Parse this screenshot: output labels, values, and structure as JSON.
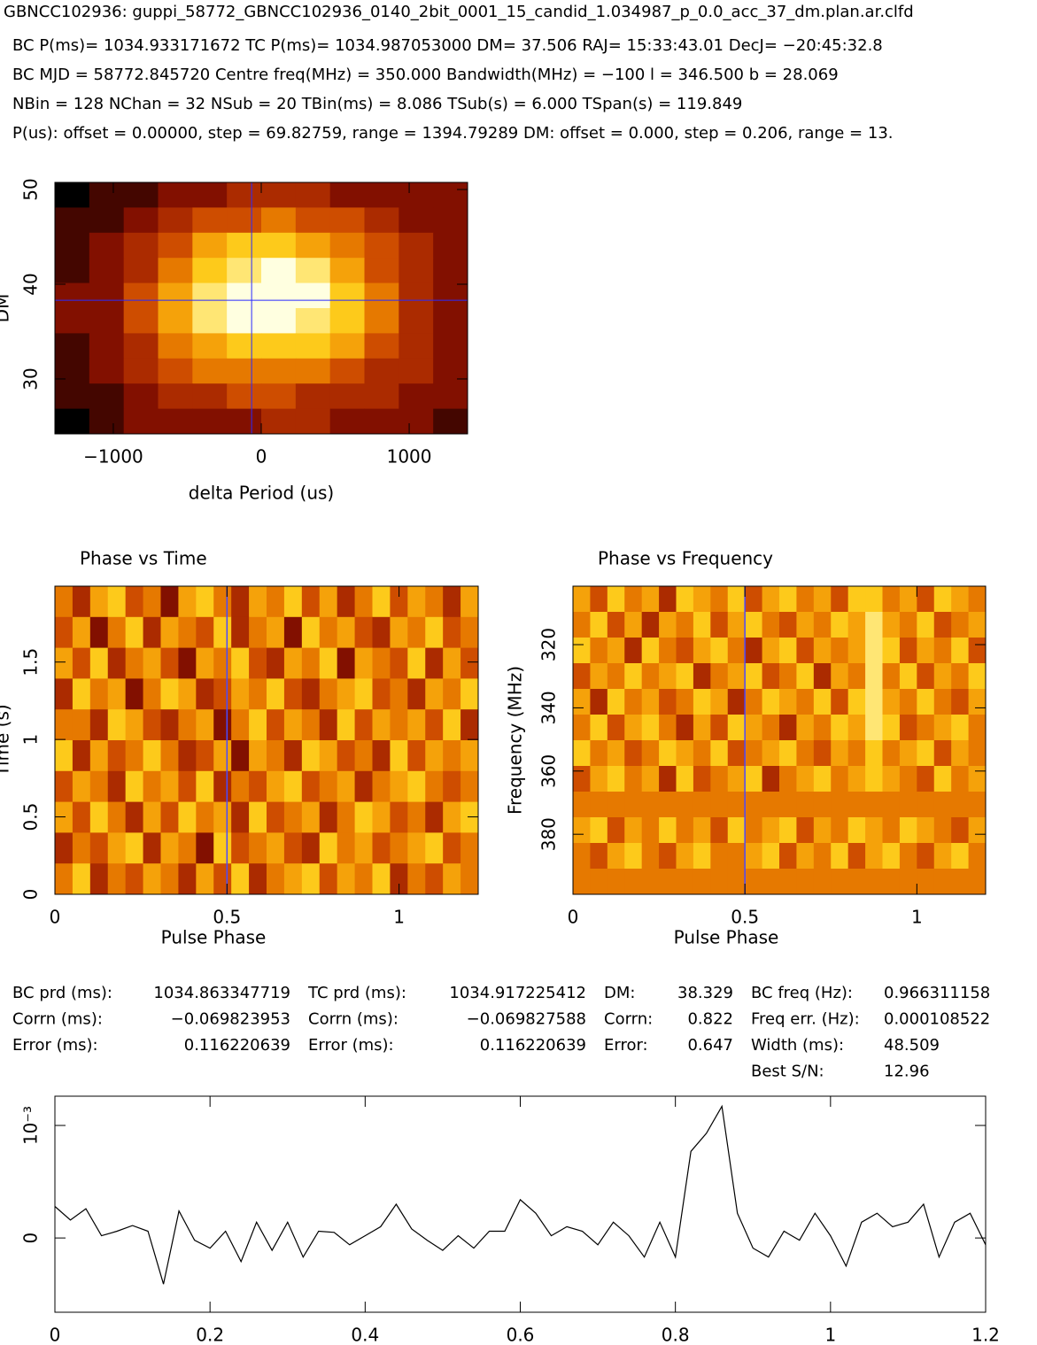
{
  "header": {
    "title": "GBNCC102936: guppi_58772_GBNCC102936_0140_2bit_0001_15_candid_1.034987_p_0.0_acc_37_dm.plan.ar.clfd",
    "lines": [
      "BC P(ms)= 1034.933171672 TC P(ms)= 1034.987053000 DM= 37.506 RAJ= 15:33:43.01 DecJ= −20:45:32.8",
      "BC MJD = 58772.845720 Centre freq(MHz) = 350.000 Bandwidth(MHz) = −100 l = 346.500 b = 28.069",
      "NBin = 128 NChan = 32 NSub = 20 TBin(ms) = 8.086 TSub(s) = 6.000 TSpan(s) = 119.849",
      "P(us): offset = 0.00000, step = 69.82759, range = 1394.79289 DM: offset = 0.000, step = 0.206, range = 13."
    ]
  },
  "chart_data": [
    {
      "type": "heatmap",
      "xlabel": "delta Period (us)",
      "ylabel": "DM",
      "xlim": [
        -1394.79,
        1394.79
      ],
      "ylim": [
        24.2,
        50.75
      ],
      "xticks": [
        {
          "value": -1000,
          "label": "−1000"
        },
        0,
        1000
      ],
      "yticks": [
        30,
        40,
        50
      ],
      "zlim": [
        0,
        9
      ],
      "colormap": [
        "#000000",
        "#7a0a00",
        "#c43c00",
        "#f08a00",
        "#ffd21e",
        "#ffffe0"
      ],
      "crosshair": {
        "x": -65,
        "y": 38.3
      },
      "line_color": "#2a2aff",
      "z": [
        [
          0,
          1,
          1,
          2,
          2,
          3,
          3,
          3,
          2,
          2,
          2,
          2
        ],
        [
          1,
          1,
          2,
          3,
          4,
          4,
          5,
          4,
          4,
          3,
          2,
          2
        ],
        [
          1,
          2,
          3,
          4,
          6,
          7,
          7,
          6,
          5,
          4,
          3,
          2
        ],
        [
          1,
          2,
          3,
          5,
          7,
          8,
          9,
          8,
          6,
          4,
          3,
          2
        ],
        [
          2,
          2,
          4,
          6,
          8,
          9,
          9,
          9,
          7,
          5,
          3,
          2
        ],
        [
          2,
          2,
          4,
          6,
          8,
          9,
          9,
          8,
          7,
          5,
          3,
          2
        ],
        [
          1,
          2,
          3,
          5,
          6,
          7,
          7,
          7,
          6,
          4,
          3,
          2
        ],
        [
          1,
          2,
          3,
          4,
          5,
          5,
          5,
          5,
          4,
          3,
          3,
          2
        ],
        [
          1,
          1,
          2,
          3,
          3,
          4,
          4,
          3,
          3,
          3,
          2,
          2
        ],
        [
          0,
          1,
          2,
          2,
          2,
          2,
          3,
          3,
          2,
          2,
          2,
          1
        ]
      ]
    },
    {
      "type": "heatmap",
      "title": "Phase vs Time",
      "xlabel": "Pulse Phase",
      "ylabel": "Time (s)",
      "xlim": [
        0,
        1.23
      ],
      "ylim": [
        0,
        1.99
      ],
      "xticks": [
        0,
        0.5,
        1
      ],
      "yticks": [
        0,
        0.5,
        1,
        1.5
      ],
      "zlim": [
        0,
        9
      ],
      "colormap": [
        "#000000",
        "#7a0a00",
        "#c43c00",
        "#f08a00",
        "#ffd21e",
        "#ffffe0"
      ],
      "marker_x": 0.5,
      "line_color": "#4a4aff",
      "z": [
        [
          5,
          3,
          6,
          7,
          4,
          5,
          2,
          6,
          7,
          5,
          3,
          6,
          5,
          7,
          4,
          6,
          3,
          5,
          7,
          4,
          6,
          5,
          3,
          6
        ],
        [
          4,
          6,
          2,
          5,
          7,
          3,
          6,
          5,
          4,
          7,
          3,
          5,
          6,
          2,
          7,
          5,
          6,
          4,
          3,
          6,
          5,
          7,
          4,
          5
        ],
        [
          6,
          4,
          7,
          3,
          5,
          6,
          4,
          2,
          6,
          5,
          7,
          4,
          3,
          6,
          5,
          7,
          2,
          6,
          5,
          4,
          7,
          3,
          6,
          4
        ],
        [
          3,
          7,
          5,
          6,
          2,
          5,
          7,
          6,
          3,
          4,
          6,
          5,
          7,
          4,
          3,
          5,
          6,
          7,
          4,
          5,
          3,
          6,
          5,
          7
        ],
        [
          5,
          5,
          3,
          7,
          6,
          4,
          3,
          5,
          6,
          2,
          5,
          7,
          4,
          6,
          5,
          3,
          7,
          4,
          6,
          5,
          6,
          4,
          7,
          3
        ],
        [
          7,
          3,
          6,
          4,
          5,
          7,
          5,
          3,
          4,
          6,
          2,
          6,
          5,
          3,
          7,
          6,
          4,
          5,
          3,
          7,
          4,
          6,
          5,
          6
        ],
        [
          4,
          6,
          5,
          3,
          7,
          5,
          6,
          4,
          7,
          3,
          5,
          4,
          6,
          7,
          4,
          5,
          6,
          3,
          5,
          6,
          7,
          5,
          4,
          5
        ],
        [
          6,
          4,
          7,
          5,
          3,
          6,
          4,
          7,
          5,
          6,
          3,
          7,
          4,
          5,
          6,
          3,
          5,
          7,
          6,
          4,
          5,
          3,
          6,
          7
        ],
        [
          3,
          5,
          4,
          6,
          7,
          3,
          6,
          5,
          2,
          7,
          4,
          5,
          6,
          4,
          3,
          7,
          5,
          6,
          4,
          5,
          6,
          7,
          4,
          5
        ],
        [
          5,
          7,
          3,
          5,
          4,
          6,
          5,
          3,
          6,
          4,
          7,
          3,
          5,
          6,
          7,
          4,
          6,
          5,
          7,
          3,
          5,
          4,
          6,
          5
        ]
      ]
    },
    {
      "type": "heatmap",
      "title": "Phase vs Frequency",
      "xlabel": "Pulse Phase",
      "ylabel": "Frequency (MHz)",
      "xlim": [
        0,
        1.2
      ],
      "ylim": [
        399,
        301.5
      ],
      "xticks": [
        0,
        0.5,
        1
      ],
      "yticks": [
        320,
        340,
        360,
        380
      ],
      "zlim": [
        0,
        9
      ],
      "colormap": [
        "#000000",
        "#7a0a00",
        "#c43c00",
        "#f08a00",
        "#ffd21e",
        "#ffffe0"
      ],
      "marker_x": 0.5,
      "line_color": "#4a4aff",
      "z": [
        [
          6,
          4,
          7,
          5,
          6,
          3,
          7,
          6,
          5,
          7,
          4,
          6,
          7,
          5,
          6,
          4,
          7,
          7,
          5,
          6,
          4,
          7,
          6,
          5
        ],
        [
          5,
          7,
          4,
          6,
          3,
          6,
          5,
          7,
          4,
          6,
          7,
          5,
          4,
          6,
          5,
          7,
          6,
          8,
          6,
          5,
          7,
          4,
          5,
          6
        ],
        [
          7,
          5,
          6,
          3,
          7,
          5,
          4,
          6,
          7,
          5,
          3,
          6,
          7,
          4,
          6,
          5,
          6,
          8,
          7,
          4,
          6,
          5,
          7,
          4
        ],
        [
          4,
          6,
          5,
          7,
          5,
          6,
          7,
          3,
          5,
          6,
          7,
          4,
          5,
          7,
          3,
          6,
          5,
          8,
          5,
          7,
          4,
          6,
          5,
          7
        ],
        [
          6,
          3,
          7,
          5,
          6,
          4,
          5,
          7,
          6,
          3,
          5,
          7,
          6,
          5,
          7,
          4,
          7,
          8,
          6,
          5,
          7,
          5,
          4,
          6
        ],
        [
          5,
          7,
          4,
          6,
          7,
          5,
          3,
          6,
          4,
          7,
          6,
          5,
          3,
          6,
          5,
          7,
          6,
          8,
          7,
          4,
          5,
          6,
          7,
          5
        ],
        [
          7,
          5,
          6,
          4,
          5,
          7,
          6,
          5,
          7,
          4,
          5,
          6,
          7,
          5,
          4,
          6,
          5,
          7,
          5,
          6,
          7,
          4,
          6,
          5
        ],
        [
          4,
          6,
          7,
          5,
          6,
          3,
          7,
          4,
          5,
          6,
          7,
          3,
          5,
          6,
          7,
          5,
          6,
          7,
          6,
          5,
          4,
          7,
          5,
          6
        ],
        [
          5,
          5,
          5,
          5,
          5,
          5,
          5,
          5,
          5,
          5,
          5,
          5,
          5,
          5,
          5,
          5,
          5,
          5,
          5,
          5,
          5,
          5,
          5,
          5
        ],
        [
          6,
          7,
          4,
          6,
          5,
          7,
          5,
          6,
          4,
          7,
          5,
          6,
          7,
          4,
          6,
          5,
          7,
          6,
          5,
          7,
          6,
          5,
          4,
          6
        ],
        [
          5,
          4,
          6,
          7,
          5,
          4,
          6,
          7,
          5,
          5,
          6,
          7,
          4,
          6,
          5,
          7,
          4,
          6,
          7,
          5,
          4,
          6,
          7,
          5
        ],
        [
          5,
          5,
          5,
          5,
          5,
          5,
          5,
          5,
          5,
          5,
          5,
          5,
          5,
          5,
          5,
          5,
          5,
          5,
          5,
          5,
          5,
          5,
          5,
          5
        ]
      ]
    },
    {
      "type": "line",
      "xlim": [
        0,
        1.2
      ],
      "ylim": [
        -0.00066,
        0.00126
      ],
      "xticks": [
        0,
        0.2,
        0.4,
        0.6,
        0.8,
        1,
        1.2
      ],
      "yticks": [
        0,
        {
          "value": 0.001,
          "label": "10⁻³"
        }
      ],
      "color": "#000000",
      "x": [
        0,
        0.02,
        0.04,
        0.06,
        0.08,
        0.1,
        0.12,
        0.14,
        0.16,
        0.18,
        0.2,
        0.22,
        0.24,
        0.26,
        0.28,
        0.3,
        0.32,
        0.34,
        0.36,
        0.38,
        0.4,
        0.42,
        0.44,
        0.46,
        0.48,
        0.5,
        0.52,
        0.54,
        0.56,
        0.58,
        0.6,
        0.62,
        0.64,
        0.66,
        0.68,
        0.7,
        0.72,
        0.74,
        0.76,
        0.78,
        0.8,
        0.82,
        0.84,
        0.86,
        0.88,
        0.9,
        0.92,
        0.94,
        0.96,
        0.98,
        1,
        1.02,
        1.04,
        1.06,
        1.08,
        1.1,
        1.12,
        1.14,
        1.16,
        1.18,
        1.2
      ],
      "values": [
        0.00028,
        0.00016,
        0.00026,
        2e-05,
        6e-05,
        0.00011,
        6e-05,
        -0.00041,
        0.00024,
        -2e-05,
        -9e-05,
        6e-05,
        -0.00021,
        0.00014,
        -0.00011,
        0.00014,
        -0.00017,
        6e-05,
        5e-05,
        -6e-05,
        2e-05,
        0.0001,
        0.0003,
        8e-05,
        -2e-05,
        -0.00011,
        2e-05,
        -9e-05,
        6e-05,
        6e-05,
        0.00034,
        0.00022,
        2e-05,
        0.0001,
        6e-05,
        -6e-05,
        0.00014,
        2e-05,
        -0.00017,
        0.00014,
        -0.00017,
        0.00077,
        0.00093,
        0.00117,
        0.00022,
        -9e-05,
        -0.00017,
        6e-05,
        -2e-05,
        0.00022,
        2e-05,
        -0.00025,
        0.00014,
        0.00022,
        0.0001,
        0.00014,
        0.0003,
        -0.00017,
        0.00014,
        0.00022,
        -6e-05
      ]
    }
  ],
  "stats": [
    [
      [
        "BC prd (ms):",
        "1034.863347719"
      ],
      [
        "TC prd (ms):",
        "1034.917225412"
      ],
      [
        "DM:",
        "38.329"
      ],
      [
        "BC freq (Hz):",
        "0.966311158"
      ]
    ],
    [
      [
        "Corrn (ms):",
        "−0.069823953"
      ],
      [
        "Corrn (ms):",
        "−0.069827588"
      ],
      [
        "Corrn:",
        "0.822"
      ],
      [
        "Freq err. (Hz):",
        "0.000108522"
      ]
    ],
    [
      [
        "Error (ms):",
        "0.116220639"
      ],
      [
        "Error (ms):",
        "0.116220639"
      ],
      [
        "Error:",
        "0.647"
      ],
      [
        "Width (ms):",
        "48.509"
      ]
    ],
    [
      [
        "Best S/N:",
        "12.96"
      ]
    ]
  ]
}
